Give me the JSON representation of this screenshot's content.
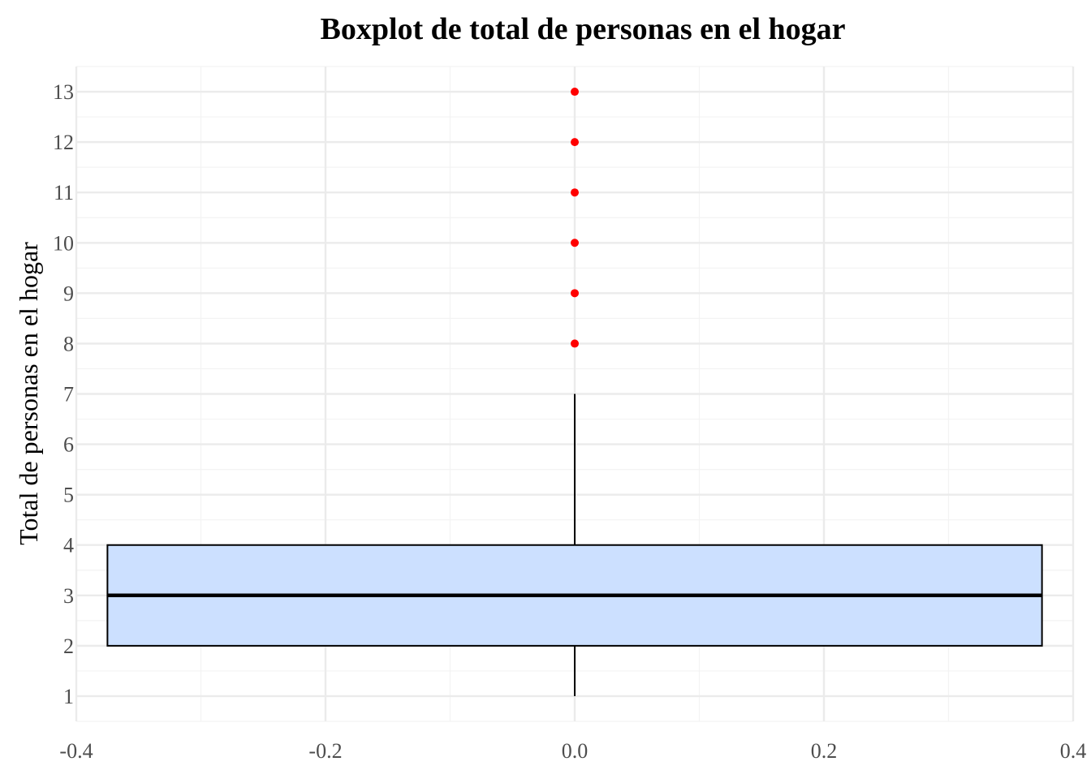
{
  "chart_data": {
    "type": "boxplot",
    "title": "Boxplot de total de personas en el hogar",
    "xlabel": "",
    "ylabel": "Total de personas en el hogar",
    "xlim": [
      -0.4,
      0.4
    ],
    "ylim": [
      0.5,
      13.5
    ],
    "x_ticks": [
      "-0.4",
      "-0.2",
      "0.0",
      "0.2",
      "0.4"
    ],
    "y_ticks": [
      "1",
      "2",
      "3",
      "4",
      "5",
      "6",
      "7",
      "8",
      "9",
      "10",
      "11",
      "12",
      "13"
    ],
    "grid": true,
    "box": {
      "x_center": 0.0,
      "x_left": -0.375,
      "x_right": 0.375,
      "whisker_low": 1,
      "q1": 2,
      "median": 3,
      "q3": 4,
      "whisker_high": 7,
      "outliers": [
        8,
        9,
        10,
        11,
        12,
        13
      ]
    },
    "colors": {
      "box_fill": "#cce0ff",
      "box_stroke": "#000000",
      "outlier": "#ff0000",
      "grid_major": "#ebebeb",
      "grid_minor": "#f3f3f3"
    }
  }
}
